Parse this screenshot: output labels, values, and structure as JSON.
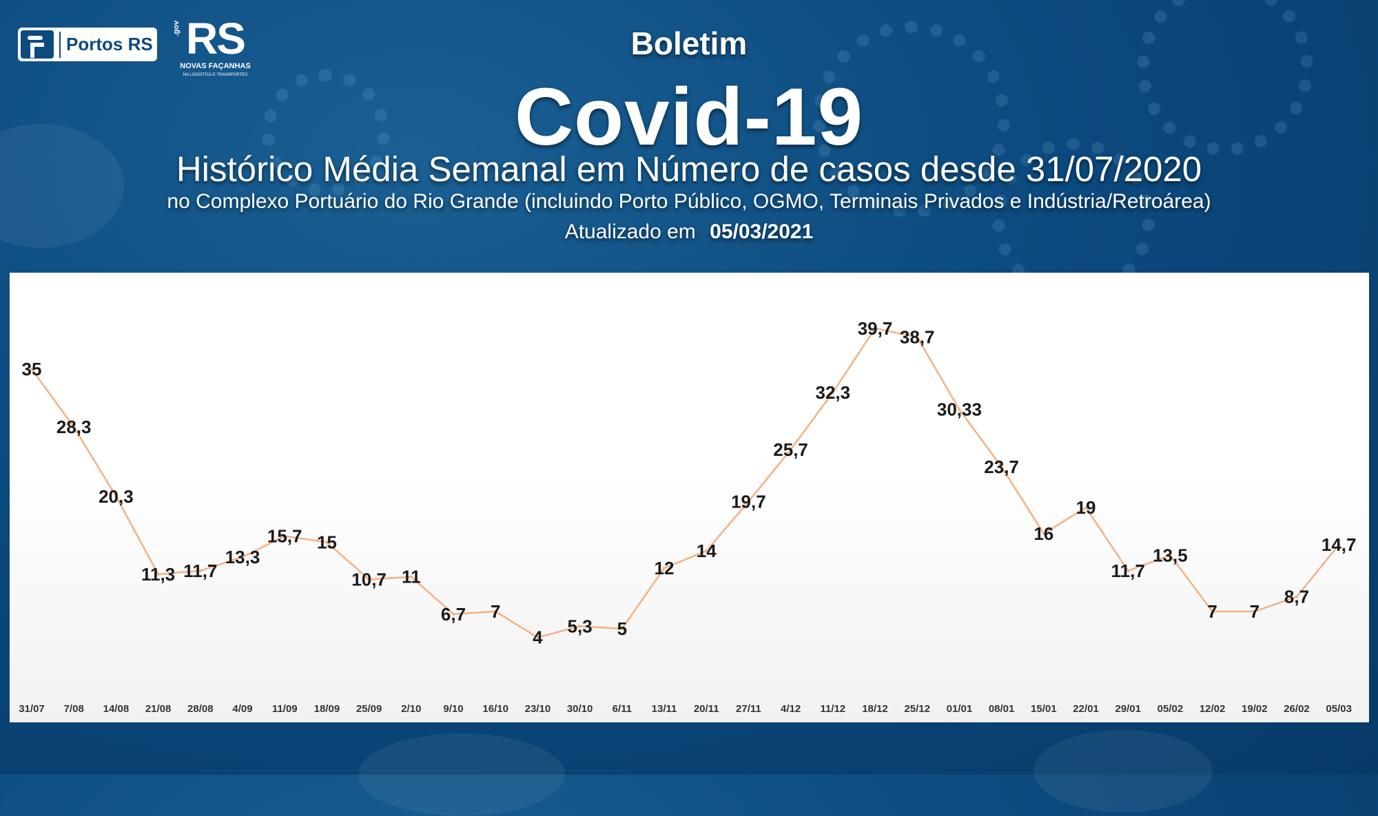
{
  "header": {
    "logo_portos_label": "Portos RS",
    "logo_gov_label": ".gov",
    "logo_rs_label": "RS",
    "logo_tagline": "NOVAS FAÇANHAS",
    "logo_subtagline": "NA LOGÍSTICA E TRANSPORTES",
    "kicker": "Boletim",
    "title": "Covid-19",
    "subtitle": "Histórico Média Semanal em Número de casos desde 31/07/2020",
    "description": "no Complexo Portuário do Rio Grande (incluindo Porto Público, OGMO, Terminais Privados e Indústria/Retroárea)",
    "updated_label": "Atualizado em",
    "updated_date": "05/03/2021"
  },
  "colors": {
    "background": "#0c4a7f",
    "line": "#f4b183",
    "label": "#1a1a1a"
  },
  "chart_data": {
    "type": "line",
    "title": "",
    "xlabel": "",
    "ylabel": "",
    "grid": false,
    "legend": "none",
    "ylim": [
      0,
      42
    ],
    "categories": [
      "31/07",
      "7/08",
      "14/08",
      "21/08",
      "28/08",
      "4/09",
      "11/09",
      "18/09",
      "25/09",
      "2/10",
      "9/10",
      "16/10",
      "23/10",
      "30/10",
      "6/11",
      "13/11",
      "20/11",
      "27/11",
      "4/12",
      "11/12",
      "18/12",
      "25/12",
      "01/01",
      "08/01",
      "15/01",
      "22/01",
      "29/01",
      "05/02",
      "12/02",
      "19/02",
      "26/02",
      "05/03"
    ],
    "series": [
      {
        "values": [
          35,
          28.3,
          20.3,
          11.3,
          11.7,
          13.3,
          15.7,
          15,
          10.7,
          11,
          6.7,
          7,
          4,
          5.3,
          5,
          12,
          14,
          19.7,
          25.7,
          32.3,
          39.7,
          38.7,
          30.33,
          23.7,
          16,
          19,
          11.7,
          13.5,
          7,
          7,
          8.7,
          14.7
        ],
        "labels": [
          "35",
          "28,3",
          "20,3",
          "11,3",
          "11,7",
          "13,3",
          "15,7",
          "15",
          "10,7",
          "11",
          "6,7",
          "7",
          "4",
          "5,3",
          "5",
          "12",
          "14",
          "19,7",
          "25,7",
          "32,3",
          "39,7",
          "38,7",
          "30,33",
          "23,7",
          "16",
          "19",
          "11,7",
          "13,5",
          "7",
          "7",
          "8,7",
          "14,7"
        ]
      }
    ]
  }
}
